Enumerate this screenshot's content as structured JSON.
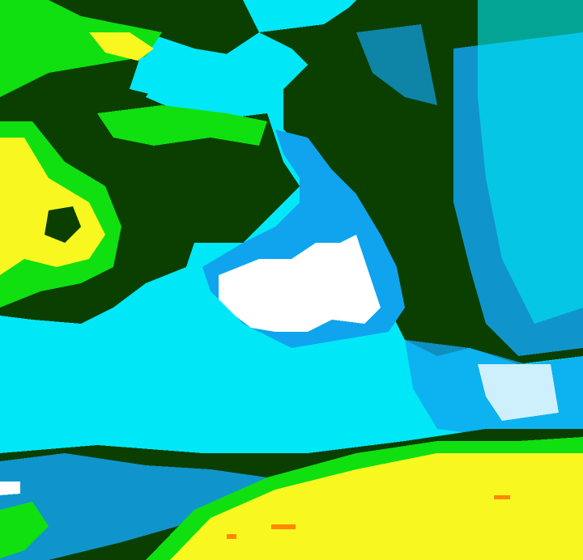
{
  "map": {
    "type": "classified-raster",
    "class_colors": {
      "dark_green": "#0b3f00",
      "cyan": "#00e8f8",
      "blue": "#10a4ee",
      "white": "#ffffff",
      "green": "#10e010",
      "yellow": "#f8f820",
      "orange": "#ff8800"
    }
  }
}
